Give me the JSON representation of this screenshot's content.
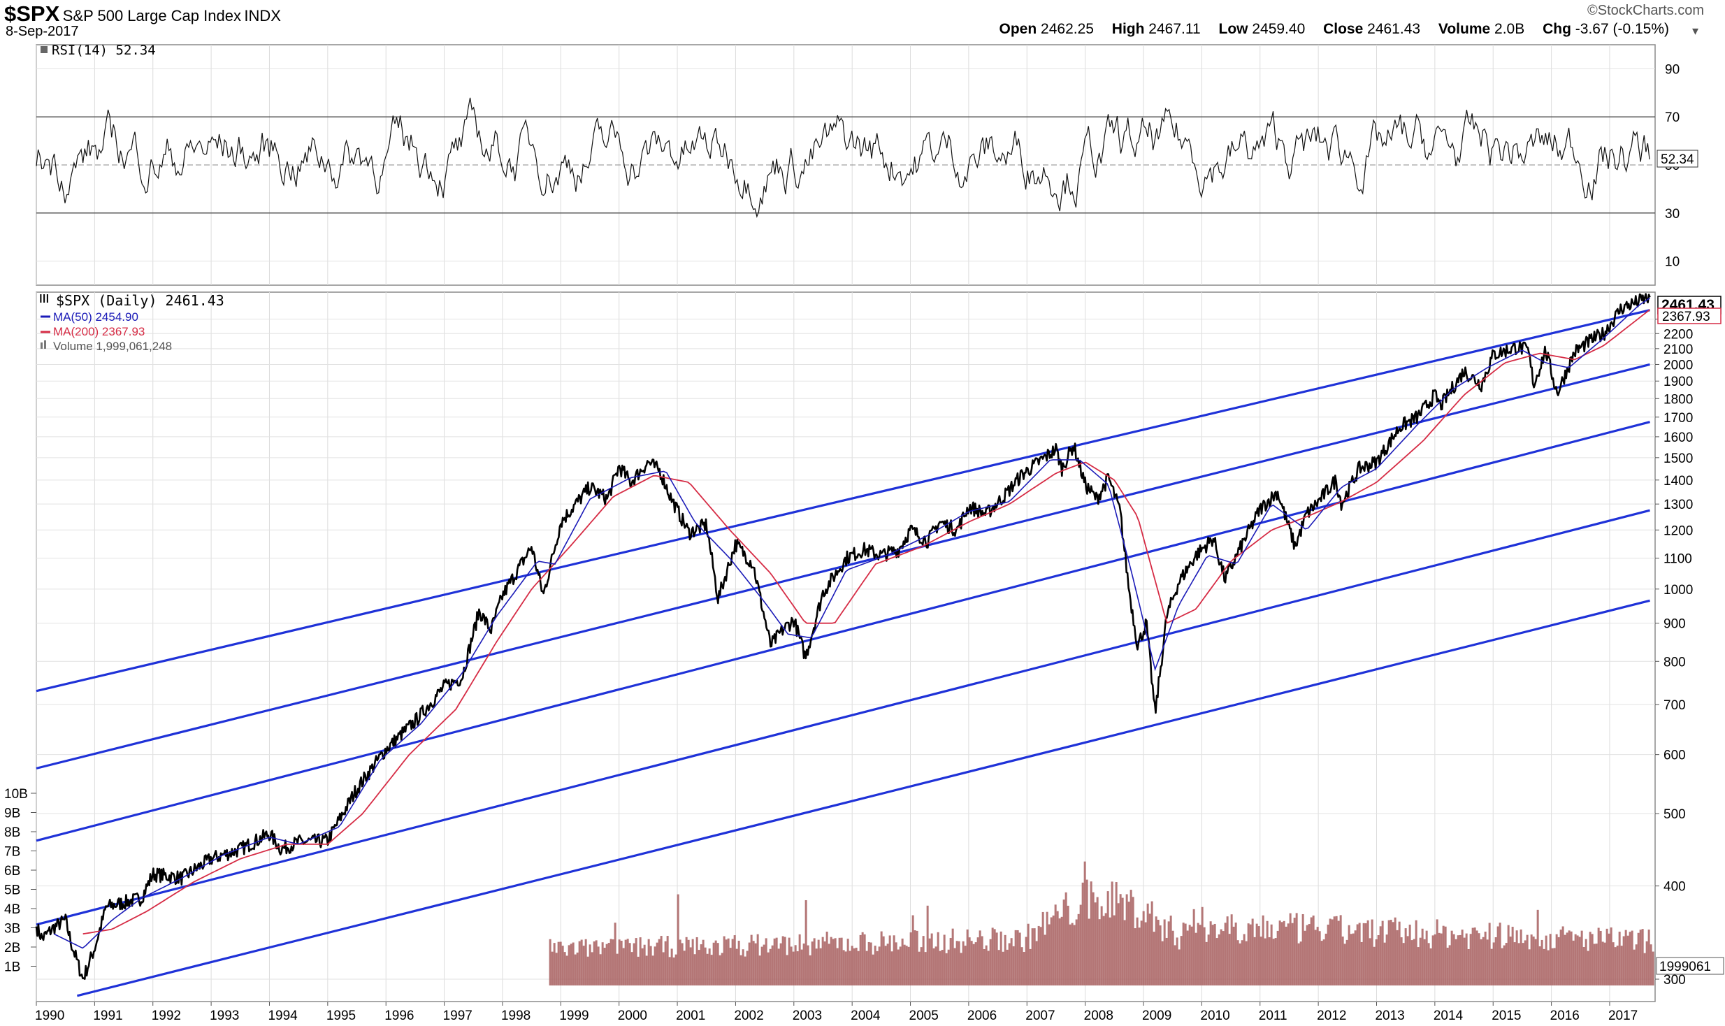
{
  "header": {
    "symbol": "$SPX",
    "name": "S&P 500 Large Cap Index",
    "exchange": "INDX",
    "date": "8-Sep-2017",
    "brand": "StockCharts.com",
    "open_label": "Open",
    "open": "2462.25",
    "high_label": "High",
    "high": "2467.11",
    "low_label": "Low",
    "low": "2459.40",
    "close_label": "Close",
    "close": "2461.43",
    "volume_label": "Volume",
    "volume": "2.0B",
    "chg_label": "Chg",
    "chg": "-3.67 (-0.15%)"
  },
  "rsi_panel": {
    "legend": "RSI(14) 52.34",
    "current_value": "52.34",
    "ticks": [
      10,
      30,
      50,
      70,
      90
    ],
    "tick_labels": [
      "10",
      "30",
      "50",
      "70",
      "90"
    ],
    "reference_lines": [
      30,
      70
    ]
  },
  "price_panel": {
    "legend": "$SPX (Daily) 2461.43",
    "ma50_legend": "MA(50) 2454.90",
    "ma200_legend": "MA(200) 2367.93",
    "volume_legend": "Volume 1,999,061,248",
    "last_price_label": "2461.43",
    "ma200_value_label": "2367.93",
    "volume_value_label": "1999061",
    "ma50_color": "#1b1bb8",
    "ma200_color": "#d62c45",
    "channel_color": "#1f32d8",
    "volume_color": "#a75e5e"
  },
  "chart_data": {
    "type": "line",
    "scale": "log",
    "x_axis_years": [
      "1990",
      "1991",
      "1992",
      "1993",
      "1994",
      "1995",
      "1996",
      "1997",
      "1998",
      "1999",
      "2000",
      "2001",
      "2002",
      "2003",
      "2004",
      "2005",
      "2006",
      "2007",
      "2008",
      "2009",
      "2010",
      "2011",
      "2012",
      "2013",
      "2014",
      "2015",
      "2016",
      "2017"
    ],
    "price_ticks": [
      300,
      400,
      500,
      600,
      700,
      800,
      900,
      1000,
      1100,
      1200,
      1300,
      1400,
      1500,
      1600,
      1700,
      1800,
      1900,
      2000,
      2100,
      2200,
      2300
    ],
    "volume_ticks": [
      "1B",
      "2B",
      "3B",
      "4B",
      "5B",
      "6B",
      "7B",
      "8B",
      "9B",
      "10B"
    ],
    "ylim": [
      280,
      2500
    ],
    "price_series": {
      "name": "$SPX",
      "points": [
        [
          1990.0,
          353
        ],
        [
          1990.1,
          340
        ],
        [
          1990.3,
          352
        ],
        [
          1990.5,
          360
        ],
        [
          1990.6,
          335
        ],
        [
          1990.8,
          300
        ],
        [
          1991.0,
          330
        ],
        [
          1991.2,
          375
        ],
        [
          1991.5,
          380
        ],
        [
          1991.8,
          385
        ],
        [
          1992.0,
          415
        ],
        [
          1992.5,
          410
        ],
        [
          1993.0,
          435
        ],
        [
          1993.5,
          448
        ],
        [
          1994.0,
          470
        ],
        [
          1994.2,
          448
        ],
        [
          1994.5,
          458
        ],
        [
          1995.0,
          460
        ],
        [
          1995.5,
          540
        ],
        [
          1996.0,
          610
        ],
        [
          1996.5,
          665
        ],
        [
          1997.0,
          740
        ],
        [
          1997.3,
          760
        ],
        [
          1997.6,
          935
        ],
        [
          1997.8,
          880
        ],
        [
          1998.0,
          980
        ],
        [
          1998.5,
          1140
        ],
        [
          1998.7,
          980
        ],
        [
          1999.0,
          1230
        ],
        [
          1999.5,
          1370
        ],
        [
          1999.8,
          1320
        ],
        [
          2000.0,
          1460
        ],
        [
          2000.2,
          1390
        ],
        [
          2000.5,
          1480
        ],
        [
          2000.7,
          1440
        ],
        [
          2000.9,
          1320
        ],
        [
          2001.2,
          1190
        ],
        [
          2001.5,
          1220
        ],
        [
          2001.7,
          970
        ],
        [
          2002.0,
          1150
        ],
        [
          2002.3,
          1080
        ],
        [
          2002.6,
          840
        ],
        [
          2002.8,
          880
        ],
        [
          2003.0,
          910
        ],
        [
          2003.2,
          810
        ],
        [
          2003.5,
          990
        ],
        [
          2003.9,
          1100
        ],
        [
          2004.2,
          1130
        ],
        [
          2004.5,
          1110
        ],
        [
          2004.8,
          1130
        ],
        [
          2005.0,
          1200
        ],
        [
          2005.3,
          1160
        ],
        [
          2005.5,
          1230
        ],
        [
          2005.8,
          1200
        ],
        [
          2006.0,
          1290
        ],
        [
          2006.3,
          1260
        ],
        [
          2006.6,
          1330
        ],
        [
          2006.9,
          1420
        ],
        [
          2007.2,
          1480
        ],
        [
          2007.5,
          1540
        ],
        [
          2007.6,
          1450
        ],
        [
          2007.8,
          1560
        ],
        [
          2008.0,
          1380
        ],
        [
          2008.2,
          1320
        ],
        [
          2008.4,
          1410
        ],
        [
          2008.6,
          1270
        ],
        [
          2008.75,
          1000
        ],
        [
          2008.9,
          840
        ],
        [
          2009.05,
          900
        ],
        [
          2009.2,
          680
        ],
        [
          2009.4,
          920
        ],
        [
          2009.6,
          1020
        ],
        [
          2009.9,
          1110
        ],
        [
          2010.2,
          1170
        ],
        [
          2010.4,
          1030
        ],
        [
          2010.7,
          1150
        ],
        [
          2011.0,
          1280
        ],
        [
          2011.3,
          1350
        ],
        [
          2011.6,
          1140
        ],
        [
          2011.8,
          1260
        ],
        [
          2012.0,
          1310
        ],
        [
          2012.3,
          1400
        ],
        [
          2012.4,
          1300
        ],
        [
          2012.7,
          1450
        ],
        [
          2013.0,
          1480
        ],
        [
          2013.4,
          1650
        ],
        [
          2013.7,
          1700
        ],
        [
          2014.0,
          1820
        ],
        [
          2014.1,
          1760
        ],
        [
          2014.5,
          1960
        ],
        [
          2014.8,
          1880
        ],
        [
          2015.0,
          2060
        ],
        [
          2015.4,
          2110
        ],
        [
          2015.6,
          2090
        ],
        [
          2015.7,
          1880
        ],
        [
          2015.9,
          2090
        ],
        [
          2016.1,
          1830
        ],
        [
          2016.4,
          2080
        ],
        [
          2016.7,
          2160
        ],
        [
          2016.9,
          2200
        ],
        [
          2017.2,
          2380
        ],
        [
          2017.5,
          2430
        ],
        [
          2017.69,
          2461
        ]
      ]
    },
    "ma50_series": {
      "name": "MA(50)",
      "points": [
        [
          1990.3,
          345
        ],
        [
          1990.8,
          330
        ],
        [
          1991.3,
          360
        ],
        [
          1991.8,
          385
        ],
        [
          1992.5,
          410
        ],
        [
          1993.2,
          440
        ],
        [
          1994.0,
          465
        ],
        [
          1994.5,
          455
        ],
        [
          1995.2,
          480
        ],
        [
          1995.9,
          590
        ],
        [
          1996.6,
          660
        ],
        [
          1997.3,
          770
        ],
        [
          1997.9,
          920
        ],
        [
          1998.6,
          1090
        ],
        [
          1998.9,
          1080
        ],
        [
          1999.5,
          1320
        ],
        [
          2000.2,
          1410
        ],
        [
          2000.8,
          1440
        ],
        [
          2001.3,
          1230
        ],
        [
          2001.9,
          1100
        ],
        [
          2002.5,
          960
        ],
        [
          2002.9,
          870
        ],
        [
          2003.3,
          860
        ],
        [
          2003.9,
          1060
        ],
        [
          2004.6,
          1110
        ],
        [
          2005.3,
          1180
        ],
        [
          2006.0,
          1270
        ],
        [
          2006.7,
          1310
        ],
        [
          2007.4,
          1490
        ],
        [
          2007.9,
          1490
        ],
        [
          2008.4,
          1380
        ],
        [
          2008.8,
          1050
        ],
        [
          2009.2,
          780
        ],
        [
          2009.6,
          950
        ],
        [
          2010.1,
          1110
        ],
        [
          2010.6,
          1080
        ],
        [
          2011.2,
          1300
        ],
        [
          2011.8,
          1200
        ],
        [
          2012.4,
          1370
        ],
        [
          2013.0,
          1450
        ],
        [
          2013.7,
          1660
        ],
        [
          2014.3,
          1850
        ],
        [
          2014.9,
          1980
        ],
        [
          2015.5,
          2090
        ],
        [
          2015.9,
          2010
        ],
        [
          2016.3,
          1980
        ],
        [
          2016.9,
          2170
        ],
        [
          2017.5,
          2400
        ],
        [
          2017.69,
          2455
        ]
      ]
    },
    "ma200_series": {
      "name": "MA(200)",
      "points": [
        [
          1990.8,
          345
        ],
        [
          1991.3,
          350
        ],
        [
          1991.9,
          370
        ],
        [
          1992.7,
          405
        ],
        [
          1993.5,
          435
        ],
        [
          1994.3,
          455
        ],
        [
          1995.0,
          455
        ],
        [
          1995.6,
          500
        ],
        [
          1996.4,
          600
        ],
        [
          1997.2,
          690
        ],
        [
          1997.9,
          850
        ],
        [
          1998.5,
          1000
        ],
        [
          1999.2,
          1150
        ],
        [
          1999.9,
          1330
        ],
        [
          2000.6,
          1420
        ],
        [
          2001.2,
          1390
        ],
        [
          2001.9,
          1200
        ],
        [
          2002.6,
          1050
        ],
        [
          2003.2,
          900
        ],
        [
          2003.7,
          900
        ],
        [
          2004.4,
          1080
        ],
        [
          2005.2,
          1140
        ],
        [
          2006.0,
          1230
        ],
        [
          2006.7,
          1300
        ],
        [
          2007.5,
          1430
        ],
        [
          2008.0,
          1480
        ],
        [
          2008.5,
          1400
        ],
        [
          2008.9,
          1250
        ],
        [
          2009.4,
          900
        ],
        [
          2009.9,
          940
        ],
        [
          2010.5,
          1090
        ],
        [
          2011.2,
          1200
        ],
        [
          2011.8,
          1250
        ],
        [
          2012.4,
          1310
        ],
        [
          2013.0,
          1390
        ],
        [
          2013.8,
          1580
        ],
        [
          2014.5,
          1820
        ],
        [
          2015.2,
          2010
        ],
        [
          2015.8,
          2070
        ],
        [
          2016.4,
          2030
        ],
        [
          2016.9,
          2120
        ],
        [
          2017.69,
          2368
        ]
      ]
    },
    "rsi_series": {
      "name": "RSI(14)",
      "last": 52.34
    },
    "channel_lines": [
      {
        "name": "channel-1",
        "start": [
          1990.0,
          730
        ],
        "end": [
          2017.69,
          2365
        ]
      },
      {
        "name": "channel-2",
        "start": [
          1990.0,
          575
        ],
        "end": [
          2017.69,
          2000
        ]
      },
      {
        "name": "channel-3",
        "start": [
          1990.0,
          460
        ],
        "end": [
          2017.69,
          1675
        ]
      },
      {
        "name": "channel-4",
        "start": [
          1990.0,
          355
        ],
        "end": [
          2017.69,
          1275
        ]
      },
      {
        "name": "channel-5",
        "start": [
          1990.7,
          285
        ],
        "end": [
          2017.69,
          965
        ]
      }
    ],
    "volume_start_year": 1998.8
  }
}
